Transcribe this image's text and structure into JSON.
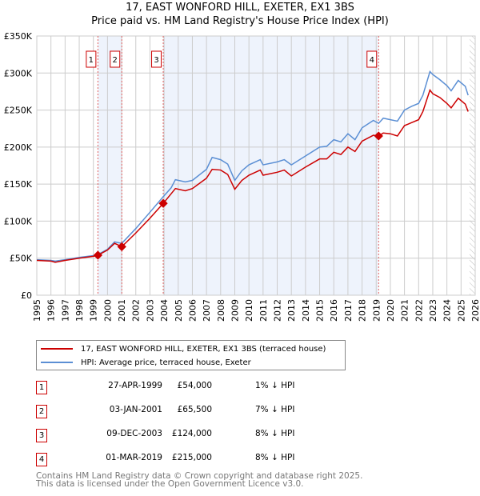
{
  "title": "17, EAST WONFORD HILL, EXETER, EX1 3BS",
  "subtitle": "Price paid vs. HM Land Registry's House Price Index (HPI)",
  "chart_data": {
    "type": "line",
    "xlim": [
      1995,
      2026
    ],
    "ylim": [
      0,
      350000
    ],
    "yticks": [
      {
        "v": 0,
        "l": "£0"
      },
      {
        "v": 50000,
        "l": "£50K"
      },
      {
        "v": 100000,
        "l": "£100K"
      },
      {
        "v": 150000,
        "l": "£150K"
      },
      {
        "v": 200000,
        "l": "£200K"
      },
      {
        "v": 250000,
        "l": "£250K"
      },
      {
        "v": 300000,
        "l": "£300K"
      },
      {
        "v": 350000,
        "l": "£350K"
      }
    ],
    "xticks": [
      "1995",
      "1996",
      "1997",
      "1998",
      "1999",
      "2000",
      "2001",
      "2002",
      "2003",
      "2004",
      "2005",
      "2006",
      "2007",
      "2008",
      "2009",
      "2010",
      "2011",
      "2012",
      "2013",
      "2014",
      "2015",
      "2016",
      "2017",
      "2018",
      "2019",
      "2020",
      "2021",
      "2022",
      "2023",
      "2024",
      "2025",
      "2026"
    ],
    "shaded_ranges": [
      [
        1999.32,
        2001.01
      ],
      [
        2003.94,
        2019.17
      ]
    ],
    "hatched_from": 2025.6,
    "series": [
      {
        "name": "17, EAST WONFORD HILL, EXETER, EX1 3BS (terraced house)",
        "color": "#cc0000",
        "points": [
          [
            1995,
            47000
          ],
          [
            1996,
            46000
          ],
          [
            1996.3,
            44500
          ],
          [
            1997,
            47000
          ],
          [
            1998,
            50000
          ],
          [
            1999,
            52500
          ],
          [
            1999.32,
            54000
          ],
          [
            2000,
            61000
          ],
          [
            2000.5,
            70000
          ],
          [
            2001.01,
            65500
          ],
          [
            2002,
            84000
          ],
          [
            2003,
            104000
          ],
          [
            2003.94,
            124000
          ],
          [
            2004.5,
            137000
          ],
          [
            2004.8,
            144000
          ],
          [
            2005.5,
            141000
          ],
          [
            2006,
            144000
          ],
          [
            2007,
            158000
          ],
          [
            2007.4,
            170000
          ],
          [
            2008,
            169000
          ],
          [
            2008.5,
            163000
          ],
          [
            2009,
            143000
          ],
          [
            2009.5,
            155000
          ],
          [
            2010,
            162000
          ],
          [
            2010.8,
            169000
          ],
          [
            2011,
            162000
          ],
          [
            2012,
            166000
          ],
          [
            2012.5,
            169000
          ],
          [
            2013,
            161000
          ],
          [
            2014,
            173000
          ],
          [
            2015,
            184000
          ],
          [
            2015.5,
            184000
          ],
          [
            2016,
            193000
          ],
          [
            2016.5,
            190000
          ],
          [
            2017,
            200000
          ],
          [
            2017.5,
            194000
          ],
          [
            2018,
            208000
          ],
          [
            2018.8,
            216000
          ],
          [
            2019.17,
            215000
          ],
          [
            2019.5,
            219000
          ],
          [
            2020,
            218000
          ],
          [
            2020.5,
            215000
          ],
          [
            2021,
            229000
          ],
          [
            2021.5,
            233000
          ],
          [
            2022,
            237000
          ],
          [
            2022.3,
            248000
          ],
          [
            2022.8,
            277000
          ],
          [
            2023,
            272000
          ],
          [
            2023.5,
            267000
          ],
          [
            2024,
            259000
          ],
          [
            2024.3,
            253000
          ],
          [
            2024.8,
            266000
          ],
          [
            2025.3,
            258000
          ],
          [
            2025.5,
            248000
          ]
        ]
      },
      {
        "name": "HPI: Average price, terraced house, Exeter",
        "color": "#5b8fd4",
        "points": [
          [
            1995,
            48000
          ],
          [
            1996,
            47000
          ],
          [
            1996.3,
            46000
          ],
          [
            1997,
            48000
          ],
          [
            1998,
            51000
          ],
          [
            1999,
            53500
          ],
          [
            1999.32,
            55000
          ],
          [
            2000,
            62000
          ],
          [
            2000.5,
            72000
          ],
          [
            2001.01,
            70000
          ],
          [
            2002,
            90000
          ],
          [
            2003,
            112000
          ],
          [
            2003.94,
            133000
          ],
          [
            2004.5,
            145000
          ],
          [
            2004.8,
            156000
          ],
          [
            2005.5,
            153000
          ],
          [
            2006,
            155000
          ],
          [
            2007,
            170000
          ],
          [
            2007.4,
            186000
          ],
          [
            2008,
            183000
          ],
          [
            2008.5,
            177000
          ],
          [
            2009,
            155000
          ],
          [
            2009.5,
            168000
          ],
          [
            2010,
            176000
          ],
          [
            2010.8,
            183000
          ],
          [
            2011,
            176000
          ],
          [
            2012,
            180000
          ],
          [
            2012.5,
            183000
          ],
          [
            2013,
            176000
          ],
          [
            2014,
            188000
          ],
          [
            2015,
            200000
          ],
          [
            2015.5,
            201000
          ],
          [
            2016,
            210000
          ],
          [
            2016.5,
            207000
          ],
          [
            2017,
            218000
          ],
          [
            2017.5,
            210000
          ],
          [
            2018,
            226000
          ],
          [
            2018.8,
            236000
          ],
          [
            2019.17,
            232000
          ],
          [
            2019.5,
            239000
          ],
          [
            2020,
            237000
          ],
          [
            2020.5,
            235000
          ],
          [
            2021,
            250000
          ],
          [
            2021.5,
            255000
          ],
          [
            2022,
            259000
          ],
          [
            2022.3,
            270000
          ],
          [
            2022.8,
            302000
          ],
          [
            2023,
            298000
          ],
          [
            2023.5,
            291000
          ],
          [
            2024,
            283000
          ],
          [
            2024.3,
            276000
          ],
          [
            2024.8,
            290000
          ],
          [
            2025.3,
            282000
          ],
          [
            2025.5,
            270000
          ]
        ]
      }
    ],
    "sales": [
      {
        "n": "1",
        "x": 1999.32,
        "y": 54000
      },
      {
        "n": "2",
        "x": 2001.01,
        "y": 65500
      },
      {
        "n": "3",
        "x": 2003.94,
        "y": 124000
      },
      {
        "n": "4",
        "x": 2019.17,
        "y": 215000
      }
    ]
  },
  "legend": {
    "red": "17, EAST WONFORD HILL, EXETER, EX1 3BS (terraced house)",
    "blue": "HPI: Average price, terraced house, Exeter"
  },
  "table": [
    {
      "n": "1",
      "date": "27-APR-1999",
      "price": "£54,000",
      "hpi": "1% ↓ HPI"
    },
    {
      "n": "2",
      "date": "03-JAN-2001",
      "price": "£65,500",
      "hpi": "7% ↓ HPI"
    },
    {
      "n": "3",
      "date": "09-DEC-2003",
      "price": "£124,000",
      "hpi": "8% ↓ HPI"
    },
    {
      "n": "4",
      "date": "01-MAR-2019",
      "price": "£215,000",
      "hpi": "8% ↓ HPI"
    }
  ],
  "footer": {
    "line1": "Contains HM Land Registry data © Crown copyright and database right 2025.",
    "line2": "This data is licensed under the Open Government Licence v3.0."
  }
}
